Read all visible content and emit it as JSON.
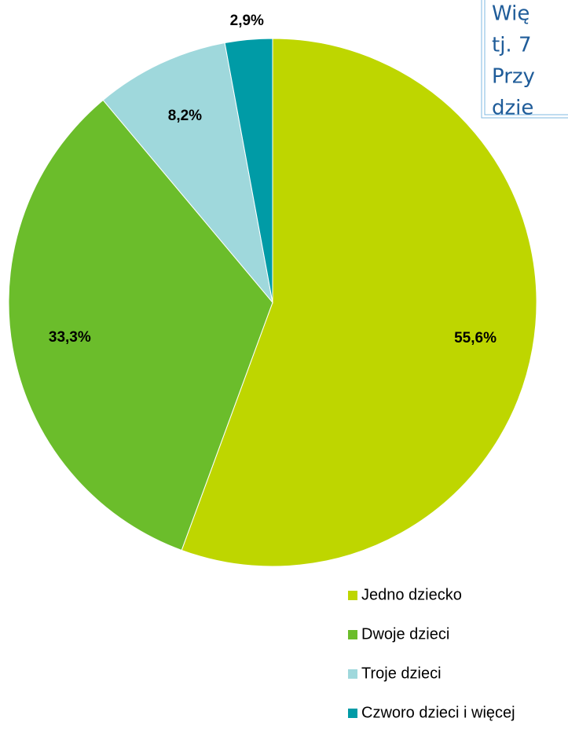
{
  "chart_data": {
    "type": "pie",
    "categories": [
      "Jedno dziecko",
      "Dwoje dzieci",
      "Troje dzieci",
      "Czworo dzieci i więcej"
    ],
    "values": [
      55.6,
      33.3,
      8.2,
      2.9
    ],
    "value_labels": [
      "55,6%",
      "33,3%",
      "8,2%",
      "2,9%"
    ],
    "colors": [
      "#bed600",
      "#6bbd2b",
      "#9fd8dc",
      "#009ba6"
    ],
    "annotation": [
      "Wię",
      "tj. 7",
      "Przy",
      "dzie"
    ]
  }
}
